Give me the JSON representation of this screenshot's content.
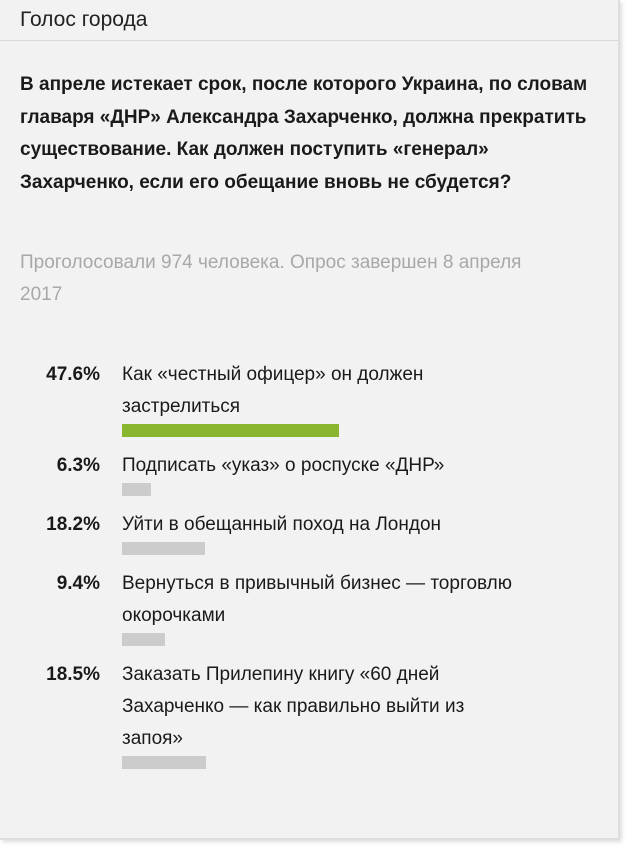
{
  "header": {
    "title": "Голос города"
  },
  "poll": {
    "question": "В апреле истекает срок, после которого Украина, по словам главаря «ДНР» Александра Захарченко, должна прекратить существование. Как должен поступить «генерал» Захарченко, если его обещание вновь не сбудется?",
    "meta": "Проголосовали 974 человека. Опрос завершен 8 апреля 2017",
    "options": [
      {
        "percent": {
          "value": 47.6,
          "label": "47.6%"
        },
        "text": "Как «честный офицер» он должен застрелиться",
        "color": "#8ab52e"
      },
      {
        "percent": {
          "value": 6.3,
          "label": "6.3%"
        },
        "text": "Подписать «указ» о роспуске «ДНР»",
        "color": "#cccccc"
      },
      {
        "percent": {
          "value": 18.2,
          "label": "18.2%"
        },
        "text": "Уйти в обещанный поход на Лондон",
        "color": "#cccccc"
      },
      {
        "percent": {
          "value": 9.4,
          "label": "9.4%"
        },
        "text": "Вернуться в привычный бизнес — торговлю окорочками",
        "color": "#cccccc"
      },
      {
        "percent": {
          "value": 18.5,
          "label": "18.5%"
        },
        "text": "Заказать Прилепину книгу «60 дней Захарченко — как правильно выйти из запоя»",
        "color": "#cccccc"
      }
    ]
  }
}
